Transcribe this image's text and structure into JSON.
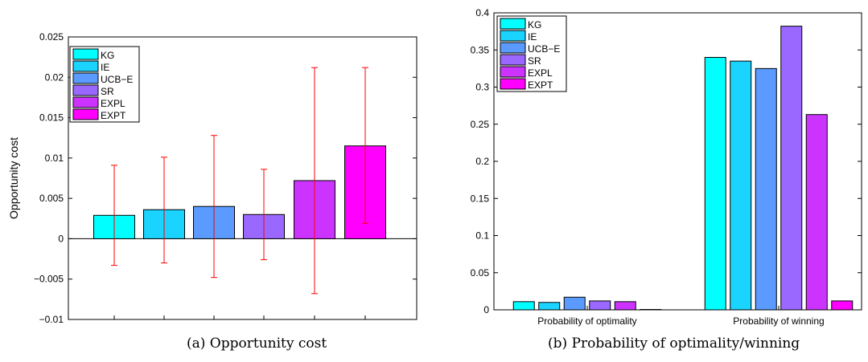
{
  "chart_data": [
    {
      "type": "bar",
      "caption": "(a)  Opportunity cost",
      "ylabel": "Opportunity cost",
      "ylim": [
        -0.01,
        0.025
      ],
      "yticks": [
        -0.01,
        -0.005,
        0,
        0.005,
        0.01,
        0.015,
        0.02,
        0.025
      ],
      "ytick_labels": [
        "−0.01",
        "−0.005",
        "0",
        "0.005",
        "0.01",
        "0.015",
        "0.02",
        "0.025"
      ],
      "legend_position": "top-left",
      "series": [
        {
          "name": "KG",
          "color": "#00ffff",
          "value": 0.0029,
          "error_low": -0.0033,
          "error_high": 0.0091
        },
        {
          "name": "IE",
          "color": "#1ad3ff",
          "value": 0.0036,
          "error_low": -0.003,
          "error_high": 0.0101
        },
        {
          "name": "UCB−E",
          "color": "#5b9bff",
          "value": 0.004,
          "error_low": -0.0048,
          "error_high": 0.0128
        },
        {
          "name": "SR",
          "color": "#9b68ff",
          "value": 0.003,
          "error_low": -0.0026,
          "error_high": 0.0086
        },
        {
          "name": "EXPL",
          "color": "#cc33ff",
          "value": 0.0072,
          "error_low": -0.0068,
          "error_high": 0.0212
        },
        {
          "name": "EXPT",
          "color": "#ff00ff",
          "value": 0.0115,
          "error_low": 0.0019,
          "error_high": 0.0212
        }
      ]
    },
    {
      "type": "bar",
      "caption": "(b)  Probability of optimality/winning",
      "ylim": [
        0,
        0.4
      ],
      "yticks": [
        0,
        0.05,
        0.1,
        0.15,
        0.2,
        0.25,
        0.3,
        0.35,
        0.4
      ],
      "ytick_labels": [
        "0",
        "0.05",
        "0.1",
        "0.15",
        "0.2",
        "0.25",
        "0.3",
        "0.35",
        "0.4"
      ],
      "categories": [
        "Probability of optimality",
        "Probability of winning"
      ],
      "legend_position": "top-left",
      "series": [
        {
          "name": "KG",
          "color": "#00ffff",
          "values": [
            0.011,
            0.34
          ]
        },
        {
          "name": "IE",
          "color": "#1ad3ff",
          "values": [
            0.01,
            0.335
          ]
        },
        {
          "name": "UCB−E",
          "color": "#5b9bff",
          "values": [
            0.017,
            0.325
          ]
        },
        {
          "name": "SR",
          "color": "#9b68ff",
          "values": [
            0.012,
            0.382
          ]
        },
        {
          "name": "EXPL",
          "color": "#cc33ff",
          "values": [
            0.011,
            0.263
          ]
        },
        {
          "name": "EXPT",
          "color": "#ff00ff",
          "values": [
            0.0005,
            0.012
          ]
        }
      ]
    }
  ]
}
